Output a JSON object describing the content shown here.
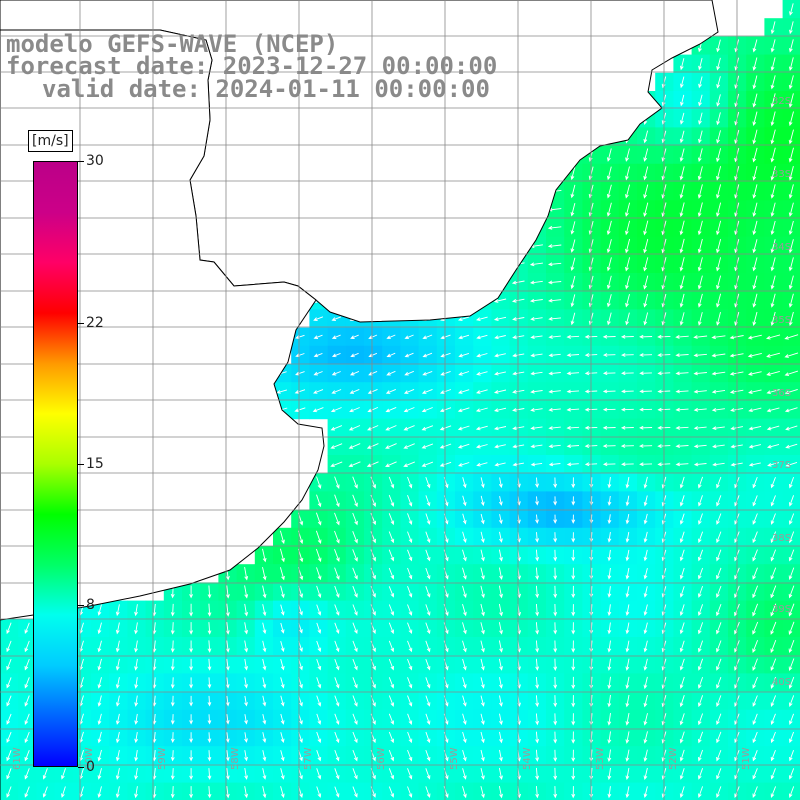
{
  "title": {
    "line1": "modelo GEFS-WAVE (NCEP)",
    "line2": "forecast date: 2023-12-27 00:00:00",
    "line3": "valid date: 2024-01-11 00:00:00"
  },
  "colorbar": {
    "unit": "[m/s]",
    "min": 0,
    "max": 30,
    "ticks": [
      {
        "label": "30",
        "value": 30
      },
      {
        "label": "22",
        "value": 22
      },
      {
        "label": "15",
        "value": 15
      },
      {
        "label": "8",
        "value": 8
      },
      {
        "label": "0",
        "value": 0
      }
    ],
    "stops": [
      "#0000ff",
      "#0066ff",
      "#00ccff",
      "#00ffee",
      "#00ff66",
      "#00ff00",
      "#aaff00",
      "#ffff00",
      "#ff9900",
      "#ff0000",
      "#ff0066",
      "#cc0088",
      "#bb0088"
    ]
  },
  "map": {
    "lat_labels": [
      "32S",
      "33S",
      "34S",
      "35S",
      "36S",
      "37S",
      "38S",
      "39S",
      "40S"
    ],
    "lon_labels": [
      "61W",
      "60W",
      "59W",
      "58W",
      "57W",
      "56W",
      "55W",
      "54W",
      "53W",
      "52W",
      "51W"
    ],
    "colors": {
      "grid": "#888888",
      "coast": "#000000",
      "land": "#ffffff",
      "vector": "#ffffff"
    }
  }
}
